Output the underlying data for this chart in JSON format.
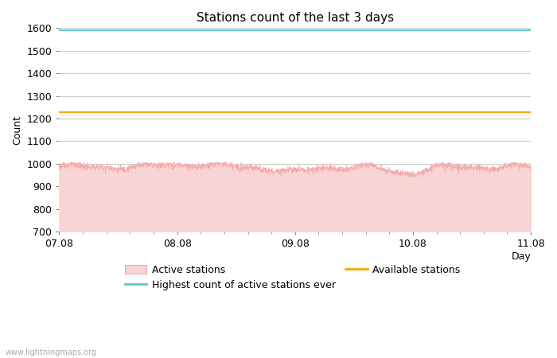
{
  "title": "Stations count of the last 3 days",
  "xlabel": "Day",
  "ylabel": "Count",
  "ylim": [
    700,
    1600
  ],
  "yticks": [
    700,
    800,
    900,
    1000,
    1100,
    1200,
    1300,
    1400,
    1500,
    1600
  ],
  "xtick_labels": [
    "07.08",
    "08.08",
    "09.08",
    "10.08",
    "11.08"
  ],
  "xtick_positions": [
    0.0,
    0.25,
    0.5,
    0.75,
    1.0
  ],
  "highest_ever_value": 1590,
  "available_stations_value": 1228,
  "active_stations_base": 980,
  "active_color_line": "#f4a7a7",
  "active_color_fill": "#f9d4d4",
  "highest_color": "#5bc8d8",
  "available_color": "#f5a800",
  "background_color": "#ffffff",
  "grid_color": "#cccccc",
  "watermark": "www.lightningmaps.org",
  "title_fontsize": 11,
  "axis_label_fontsize": 9,
  "tick_fontsize": 9,
  "legend_fontsize": 9,
  "num_points": 2000
}
